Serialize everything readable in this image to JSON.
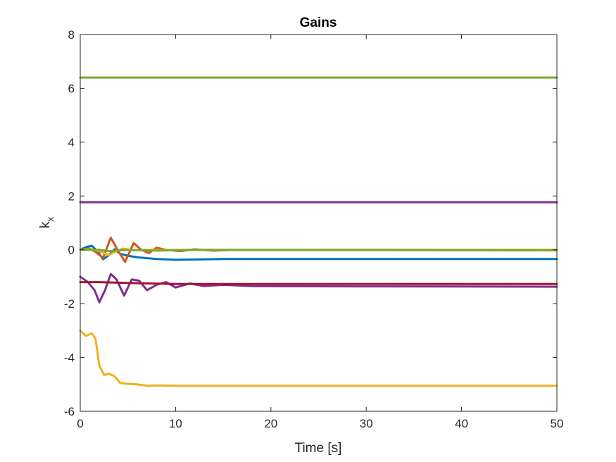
{
  "chart_data": {
    "type": "line",
    "title": "Gains",
    "xlabel": "Time [s]",
    "ylabel": "k",
    "ylabel_subscript": "x",
    "xlim": [
      0,
      50
    ],
    "ylim": [
      -6,
      8
    ],
    "xticks": [
      0,
      10,
      20,
      30,
      40,
      50
    ],
    "yticks": [
      -6,
      -4,
      -2,
      0,
      2,
      4,
      6,
      8
    ],
    "grid": false,
    "legend": "none",
    "series": [
      {
        "color": "#77AC30",
        "points": [
          [
            0,
            6.4
          ],
          [
            50,
            6.4
          ]
        ]
      },
      {
        "color": "#7E2F8E",
        "points": [
          [
            0,
            1.77
          ],
          [
            50,
            1.77
          ]
        ]
      },
      {
        "color": "#0072BD",
        "points": [
          [
            0,
            0.0
          ],
          [
            0.6,
            0.1
          ],
          [
            1.2,
            0.15
          ],
          [
            1.8,
            -0.05
          ],
          [
            2.4,
            -0.35
          ],
          [
            3.0,
            -0.2
          ],
          [
            3.6,
            0.02
          ],
          [
            4.2,
            -0.15
          ],
          [
            5.0,
            -0.22
          ],
          [
            6.0,
            -0.28
          ],
          [
            8.0,
            -0.34
          ],
          [
            10.0,
            -0.37
          ],
          [
            12.0,
            -0.36
          ],
          [
            15.0,
            -0.34
          ],
          [
            20.0,
            -0.34
          ],
          [
            30.0,
            -0.34
          ],
          [
            50.0,
            -0.34
          ]
        ]
      },
      {
        "color": "#D95319",
        "points": [
          [
            0,
            0.0
          ],
          [
            1.0,
            0.05
          ],
          [
            1.7,
            -0.1
          ],
          [
            2.4,
            -0.3
          ],
          [
            3.2,
            0.45
          ],
          [
            4.0,
            -0.05
          ],
          [
            4.7,
            -0.45
          ],
          [
            5.6,
            0.25
          ],
          [
            6.4,
            0.0
          ],
          [
            7.2,
            -0.12
          ],
          [
            8.0,
            0.08
          ],
          [
            9.0,
            0.0
          ],
          [
            10.5,
            -0.05
          ],
          [
            12.0,
            0.02
          ],
          [
            14.0,
            -0.03
          ],
          [
            16.0,
            0.0
          ],
          [
            50.0,
            0.0
          ]
        ]
      },
      {
        "color": "#EDB120",
        "points": [
          [
            0,
            -3.0
          ],
          [
            0.6,
            -3.2
          ],
          [
            1.2,
            -3.1
          ],
          [
            1.6,
            -3.3
          ],
          [
            2.0,
            -4.3
          ],
          [
            2.5,
            -4.65
          ],
          [
            3.0,
            -4.6
          ],
          [
            3.6,
            -4.7
          ],
          [
            4.2,
            -4.95
          ],
          [
            5.0,
            -4.98
          ],
          [
            6.0,
            -5.0
          ],
          [
            7.0,
            -5.05
          ],
          [
            8.0,
            -5.04
          ],
          [
            10.0,
            -5.05
          ],
          [
            50.0,
            -5.05
          ]
        ]
      },
      {
        "color": "#EDB120",
        "points": [
          [
            0,
            0.0
          ],
          [
            1.0,
            0.02
          ],
          [
            2.0,
            -0.05
          ],
          [
            3.0,
            -0.2
          ],
          [
            3.8,
            -0.05
          ],
          [
            4.5,
            0.05
          ],
          [
            5.5,
            -0.02
          ],
          [
            7.0,
            0.0
          ],
          [
            50.0,
            0.0
          ]
        ]
      },
      {
        "color": "#7E2F8E",
        "points": [
          [
            0,
            -1.0
          ],
          [
            0.8,
            -1.2
          ],
          [
            1.5,
            -1.5
          ],
          [
            2.0,
            -1.95
          ],
          [
            2.6,
            -1.5
          ],
          [
            3.2,
            -0.9
          ],
          [
            3.8,
            -1.1
          ],
          [
            4.6,
            -1.7
          ],
          [
            5.4,
            -1.1
          ],
          [
            6.2,
            -1.15
          ],
          [
            7.0,
            -1.5
          ],
          [
            8.0,
            -1.3
          ],
          [
            9.0,
            -1.2
          ],
          [
            10.0,
            -1.4
          ],
          [
            11.5,
            -1.25
          ],
          [
            13.0,
            -1.35
          ],
          [
            15.0,
            -1.3
          ],
          [
            18.0,
            -1.35
          ],
          [
            50.0,
            -1.37
          ]
        ]
      },
      {
        "color": "#A2142F",
        "points": [
          [
            0,
            -1.2
          ],
          [
            2.0,
            -1.2
          ],
          [
            4.0,
            -1.22
          ],
          [
            6.0,
            -1.24
          ],
          [
            10.0,
            -1.27
          ],
          [
            50.0,
            -1.27
          ]
        ]
      },
      {
        "color": "#77AC30",
        "points": [
          [
            0,
            0.0
          ],
          [
            2.0,
            0.0
          ],
          [
            3.0,
            -0.05
          ],
          [
            4.0,
            -0.02
          ],
          [
            5.0,
            0.0
          ],
          [
            8.0,
            -0.03
          ],
          [
            12.0,
            0.0
          ],
          [
            50.0,
            -0.02
          ]
        ]
      }
    ]
  }
}
